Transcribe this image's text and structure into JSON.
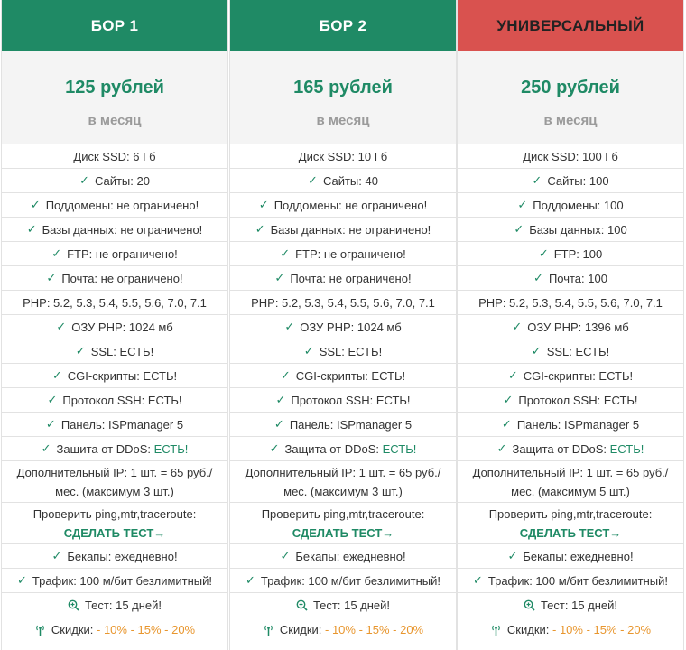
{
  "plans": [
    {
      "name": "БОР 1",
      "price": "125 рублей",
      "period": "в месяц",
      "disk": "Диск SSD: 6 Гб",
      "sites": "Сайты: 20",
      "subdomains": "Поддомены: не ограничено!",
      "databases": "Базы данных: не ограничено!",
      "ftp": "FTP: не ограничено!",
      "mail": "Почта: не ограничено!",
      "php": "PHP: 5.2, 5.3, 5.4, 5.5, 5.6, 7.0, 7.1",
      "ram": "ОЗУ PHP: 1024 мб",
      "ssl": "SSL: ЕСТЬ!",
      "cgi": "CGI-скрипты: ЕСТЬ!",
      "ssh": "Протокол SSH: ЕСТЬ!",
      "panel": "Панель: ISPmanager 5",
      "ddos_label": "Защита от DDoS: ",
      "ddos_value": "ЕСТЬ!",
      "ip_line1": "Дополнительный IP: 1 шт. = 65 руб./",
      "ip_line2": "мес. (максимум 3 шт.)",
      "ping_label": "Проверить ping,mtr,traceroute:",
      "test_link": "СДЕЛАТЬ ТЕСТ→",
      "backups": "Бекапы: ежедневно!",
      "traffic": "Трафик: 100 м/бит безлимитный!",
      "trial": "Тест: 15 дней!",
      "discount_label": "Скидки: ",
      "discount_value": "- 10% - 15% - 20%"
    },
    {
      "name": "БОР 2",
      "price": "165 рублей",
      "period": "в месяц",
      "disk": "Диск SSD: 10 Гб",
      "sites": "Сайты: 40",
      "subdomains": "Поддомены: не ограничено!",
      "databases": "Базы данных: не ограничено!",
      "ftp": "FTP: не ограничено!",
      "mail": "Почта: не ограничено!",
      "php": "PHP: 5.2, 5.3, 5.4, 5.5, 5.6, 7.0, 7.1",
      "ram": "ОЗУ PHP: 1024 мб",
      "ssl": "SSL: ЕСТЬ!",
      "cgi": "CGI-скрипты: ЕСТЬ!",
      "ssh": "Протокол SSH: ЕСТЬ!",
      "panel": "Панель: ISPmanager 5",
      "ddos_label": "Защита от DDoS: ",
      "ddos_value": "ЕСТЬ!",
      "ip_line1": "Дополнительный IP: 1 шт. = 65 руб./",
      "ip_line2": "мес. (максимум 3 шт.)",
      "ping_label": "Проверить ping,mtr,traceroute:",
      "test_link": "СДЕЛАТЬ ТЕСТ→",
      "backups": "Бекапы: ежедневно!",
      "traffic": "Трафик: 100 м/бит безлимитный!",
      "trial": "Тест: 15 дней!",
      "discount_label": "Скидки: ",
      "discount_value": "- 10% - 15% - 20%"
    },
    {
      "name": "УНИВЕРСАЛЬНЫЙ",
      "price": "250 рублей",
      "period": "в месяц",
      "disk": "Диск SSD: 100 Гб",
      "sites": "Сайты: 100",
      "subdomains": "Поддомены: 100",
      "databases": "Базы данных: 100",
      "ftp": "FTP: 100",
      "mail": "Почта: 100",
      "php": "PHP: 5.2, 5.3, 5.4, 5.5, 5.6, 7.0, 7.1",
      "ram": "ОЗУ PHP: 1396 мб",
      "ssl": "SSL: ЕСТЬ!",
      "cgi": "CGI-скрипты: ЕСТЬ!",
      "ssh": "Протокол SSH: ЕСТЬ!",
      "panel": "Панель: ISPmanager 5",
      "ddos_label": "Защита от DDoS: ",
      "ddos_value": "ЕСТЬ!",
      "ip_line1": "Дополнительный IP: 1 шт. = 65 руб./",
      "ip_line2": "мес. (максимум 5 шт.)",
      "ping_label": "Проверить ping,mtr,traceroute:",
      "test_link": "СДЕЛАТЬ ТЕСТ→",
      "backups": "Бекапы: ежедневно!",
      "traffic": "Трафик: 100 м/бит безлимитный!",
      "trial": "Тест: 15 дней!",
      "discount_label": "Скидки: ",
      "discount_value": "- 10% - 15% - 20%"
    }
  ],
  "glyphs": {
    "check": "✓"
  },
  "colors": {
    "green": "#1f8a65",
    "red": "#d9524f",
    "orange": "#e8962e"
  },
  "icons": {
    "trial": "zoom-in-icon",
    "discount": "antenna-icon"
  }
}
